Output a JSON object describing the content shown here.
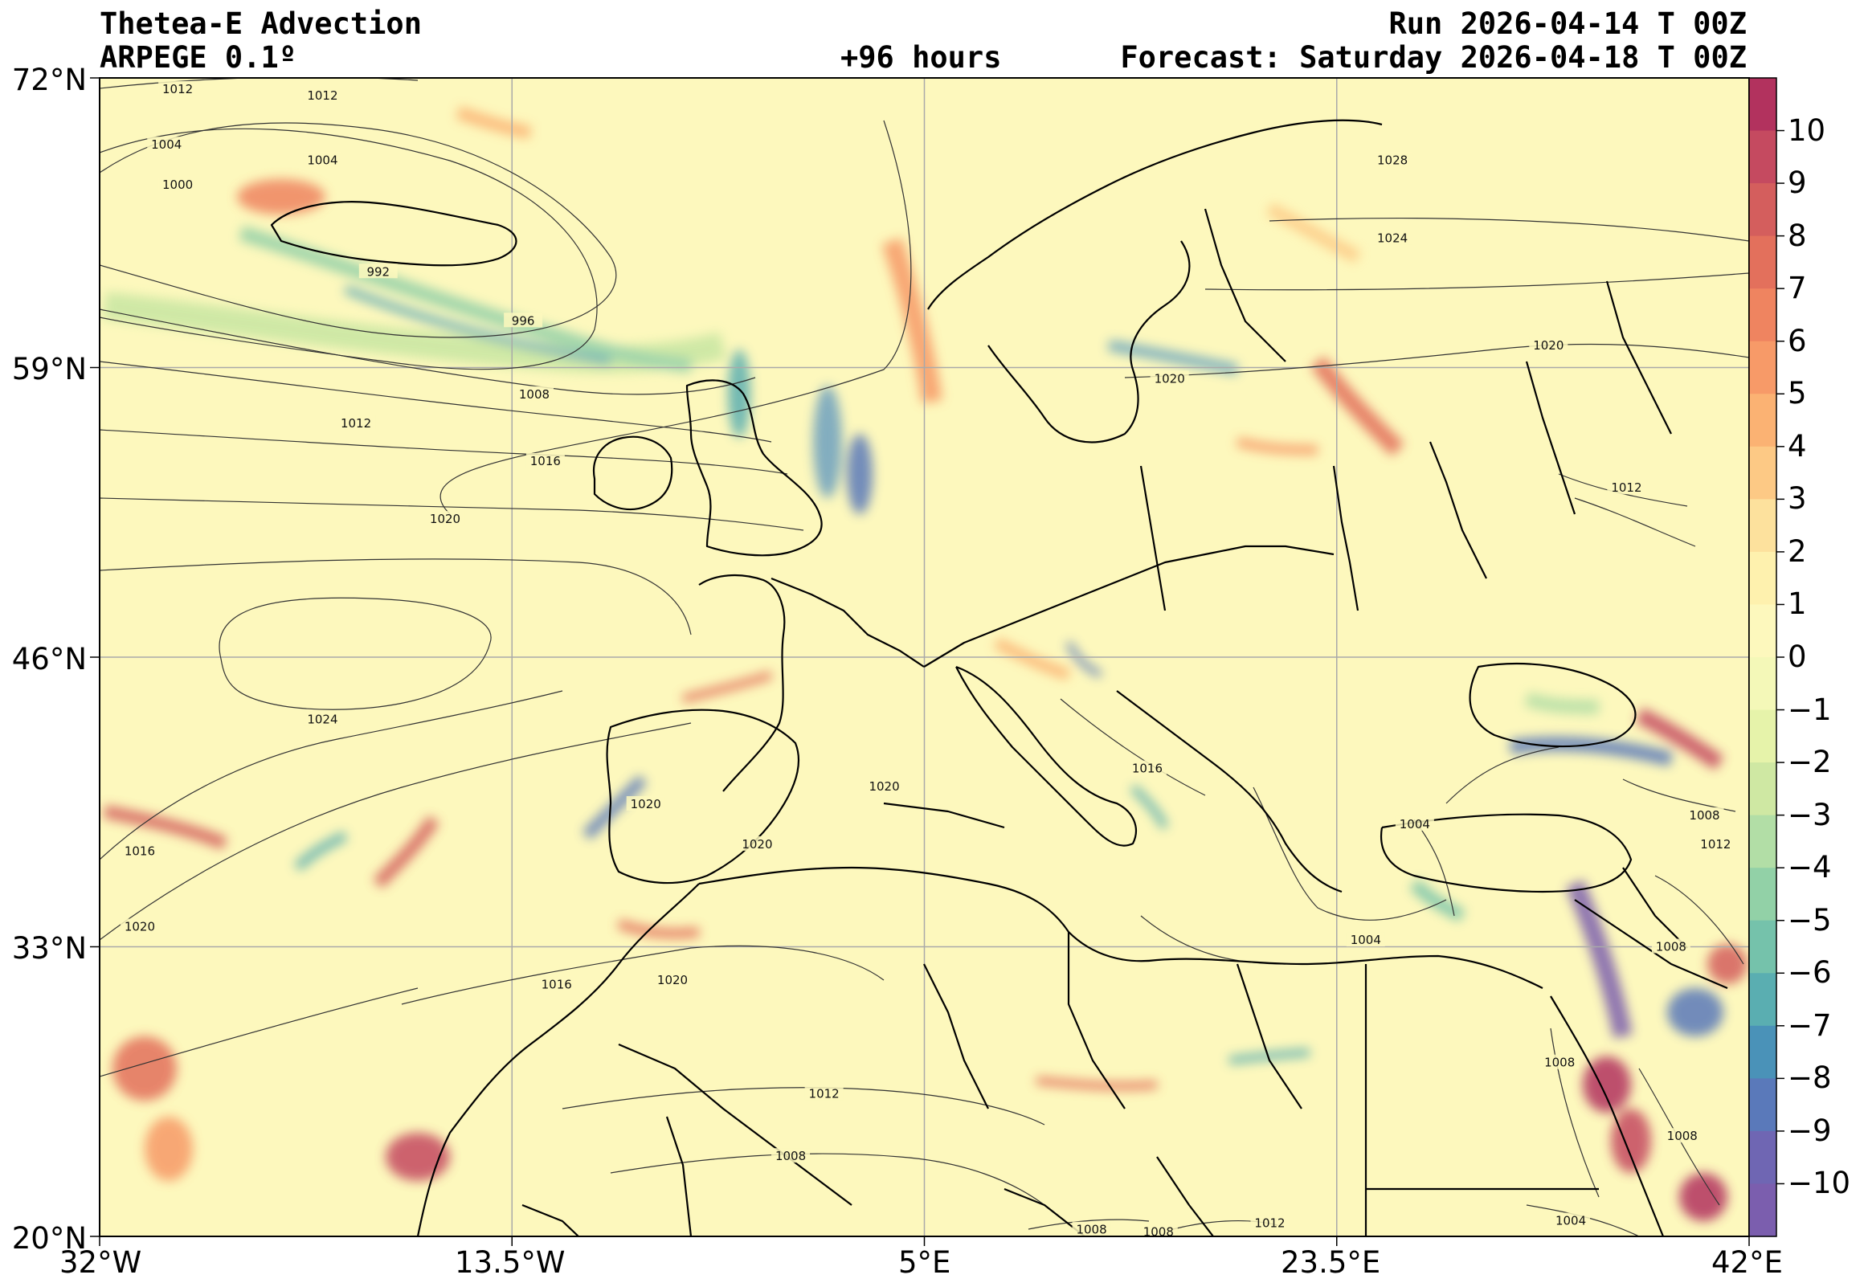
{
  "header": {
    "title": "Thetea-E Advection",
    "model": "ARPEGE 0.1º",
    "lead": "+96 hours",
    "run": "Run 2026-04-14 T 00Z",
    "forecast": "Forecast: Saturday 2026-04-18 T 00Z"
  },
  "map": {
    "projection": "plate-carree",
    "lon_range": [
      -32,
      42
    ],
    "lat_range": [
      20,
      72
    ],
    "background_color": "#fdf8bd",
    "gridlines": true,
    "lat_ticks": [
      {
        "value": 72,
        "label": "72°N"
      },
      {
        "value": 59,
        "label": "59°N"
      },
      {
        "value": 46,
        "label": "46°N"
      },
      {
        "value": 33,
        "label": "33°N"
      },
      {
        "value": 20,
        "label": "20°N"
      }
    ],
    "lon_ticks": [
      {
        "value": -32,
        "label": "32°W"
      },
      {
        "value": -13.5,
        "label": "13.5°W"
      },
      {
        "value": 5,
        "label": "5°E"
      },
      {
        "value": 23.5,
        "label": "23.5°E"
      },
      {
        "value": 42,
        "label": "42°E"
      }
    ],
    "isobar_labels": [
      {
        "text": "1012",
        "lon": -28.5,
        "lat": 71.5
      },
      {
        "text": "1012",
        "lon": -22.0,
        "lat": 71.2
      },
      {
        "text": "1004",
        "lon": -29.0,
        "lat": 69.0
      },
      {
        "text": "1004",
        "lon": -22.0,
        "lat": 68.3
      },
      {
        "text": "1000",
        "lon": -28.5,
        "lat": 67.2
      },
      {
        "text": "992",
        "lon": -19.5,
        "lat": 63.3
      },
      {
        "text": "996",
        "lon": -13.0,
        "lat": 61.1
      },
      {
        "text": "1008",
        "lon": -12.5,
        "lat": 57.8
      },
      {
        "text": "1012",
        "lon": -20.5,
        "lat": 56.5
      },
      {
        "text": "1016",
        "lon": -12.0,
        "lat": 54.8
      },
      {
        "text": "1020",
        "lon": -16.5,
        "lat": 52.2
      },
      {
        "text": "1024",
        "lon": -22.0,
        "lat": 43.2
      },
      {
        "text": "1016",
        "lon": -30.2,
        "lat": 37.3
      },
      {
        "text": "1020",
        "lon": -30.2,
        "lat": 33.9
      },
      {
        "text": "1016",
        "lon": -11.5,
        "lat": 31.3
      },
      {
        "text": "1020",
        "lon": -6.3,
        "lat": 31.5
      },
      {
        "text": "1020",
        "lon": -7.5,
        "lat": 39.4
      },
      {
        "text": "1020",
        "lon": -2.5,
        "lat": 37.6
      },
      {
        "text": "1020",
        "lon": 3.2,
        "lat": 40.2
      },
      {
        "text": "1016",
        "lon": 15.0,
        "lat": 41.0
      },
      {
        "text": "1012",
        "lon": 0.5,
        "lat": 26.4
      },
      {
        "text": "1008",
        "lon": -1.0,
        "lat": 23.6
      },
      {
        "text": "1008",
        "lon": 12.5,
        "lat": 20.3
      },
      {
        "text": "1008",
        "lon": 15.5,
        "lat": 20.2
      },
      {
        "text": "1012",
        "lon": 20.5,
        "lat": 20.6
      },
      {
        "text": "1028",
        "lon": 26.0,
        "lat": 68.3
      },
      {
        "text": "1024",
        "lon": 26.0,
        "lat": 64.8
      },
      {
        "text": "1020",
        "lon": 33.0,
        "lat": 60.0
      },
      {
        "text": "1020",
        "lon": 16.0,
        "lat": 58.5
      },
      {
        "text": "1012",
        "lon": 36.5,
        "lat": 53.6
      },
      {
        "text": "1004",
        "lon": 27.0,
        "lat": 38.5
      },
      {
        "text": "1008",
        "lon": 40.0,
        "lat": 38.9
      },
      {
        "text": "1012",
        "lon": 40.5,
        "lat": 37.6
      },
      {
        "text": "1004",
        "lon": 24.8,
        "lat": 33.3
      },
      {
        "text": "1008",
        "lon": 38.5,
        "lat": 33.0
      },
      {
        "text": "1008",
        "lon": 33.5,
        "lat": 27.8
      },
      {
        "text": "1008",
        "lon": 39.0,
        "lat": 24.5
      },
      {
        "text": "1004",
        "lon": 34.0,
        "lat": 20.7
      }
    ]
  },
  "colorbar": {
    "ticks": [
      "10",
      "9",
      "8",
      "7",
      "6",
      "5",
      "4",
      "3",
      "2",
      "1",
      "0",
      "−1",
      "−2",
      "−3",
      "−4",
      "−5",
      "−6",
      "−7",
      "−8",
      "−9",
      "−10"
    ],
    "colors_top_to_bottom": [
      "#b2325e",
      "#c54a60",
      "#d45e5d",
      "#e3705c",
      "#ef8460",
      "#f79a68",
      "#fbb273",
      "#fdc985",
      "#fde19d",
      "#fef1ae",
      "#fdf8bd",
      "#f4f8b8",
      "#e6f3aa",
      "#cfe8a3",
      "#b2dea6",
      "#92d1a7",
      "#75c2ab",
      "#5aaeb1",
      "#4a92b8",
      "#5a79ba",
      "#6f66b3",
      "#7b5eae"
    ]
  }
}
